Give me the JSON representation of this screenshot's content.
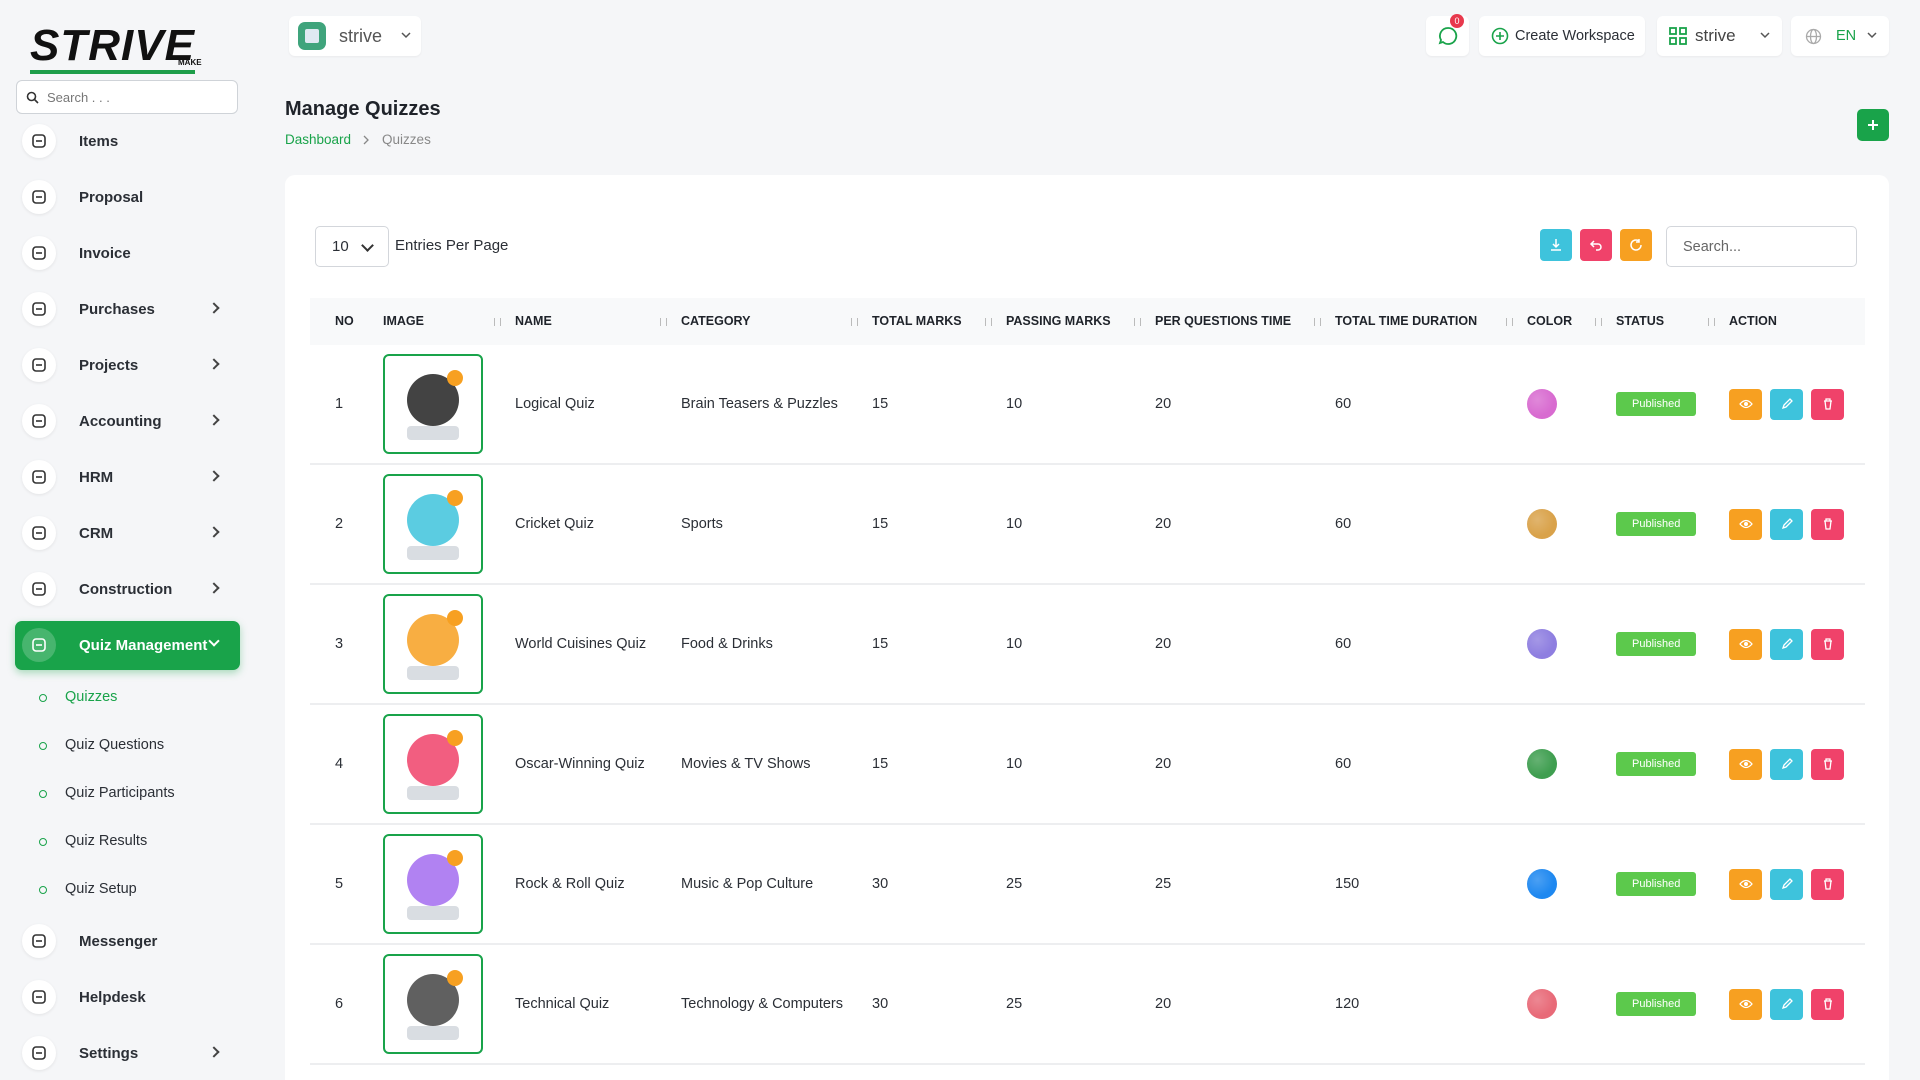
{
  "sidebar": {
    "logo": "STRIVE",
    "logo_sub": "MAKE",
    "search_placeholder": "Search . . .",
    "menu": [
      {
        "label": "Items"
      },
      {
        "label": "Proposal"
      },
      {
        "label": "Invoice"
      },
      {
        "label": "Purchases",
        "expandable": true
      },
      {
        "label": "Projects",
        "expandable": true
      },
      {
        "label": "Accounting",
        "expandable": true
      },
      {
        "label": "HRM",
        "expandable": true
      },
      {
        "label": "CRM",
        "expandable": true
      },
      {
        "label": "Construction",
        "expandable": true
      },
      {
        "label": "Quiz Management",
        "expandable": true,
        "active": true,
        "submenu": [
          "Quizzes",
          "Quiz Questions",
          "Quiz Participants",
          "Quiz Results",
          "Quiz Setup"
        ],
        "active_sub": 0
      },
      {
        "label": "Messenger"
      },
      {
        "label": "Helpdesk"
      },
      {
        "label": "Settings",
        "expandable": true
      }
    ]
  },
  "topbar": {
    "workspace": "strive",
    "notifications": 0,
    "create_workspace": "Create Workspace",
    "user_workspace": "strive",
    "language": "EN"
  },
  "page": {
    "title": "Manage Quizzes",
    "breadcrumb": [
      "Dashboard",
      "Quizzes"
    ]
  },
  "table": {
    "entries_per_page": 10,
    "entries_label": "Entries Per Page",
    "search_placeholder": "Search...",
    "headers": [
      "NO",
      "IMAGE",
      "NAME",
      "CATEGORY",
      "TOTAL MARKS",
      "PASSING MARKS",
      "PER QUESTIONS TIME",
      "TOTAL TIME DURATION",
      "COLOR",
      "STATUS",
      "ACTION"
    ],
    "rows": [
      {
        "no": 1,
        "name": "Logical Quiz",
        "category": "Brain Teasers & Puzzles",
        "total_marks": 15,
        "passing_marks": 10,
        "per_question_time": 20,
        "total_time_duration": 60,
        "color": "#d86bd0",
        "status": "Published"
      },
      {
        "no": 2,
        "name": "Cricket Quiz",
        "category": "Sports",
        "total_marks": 15,
        "passing_marks": 10,
        "per_question_time": 20,
        "total_time_duration": 60,
        "color": "#d9a24a",
        "status": "Published"
      },
      {
        "no": 3,
        "name": "World Cuisines Quiz",
        "category": "Food & Drinks",
        "total_marks": 15,
        "passing_marks": 10,
        "per_question_time": 20,
        "total_time_duration": 60,
        "color": "#8e7ee0",
        "status": "Published"
      },
      {
        "no": 4,
        "name": "Oscar-Winning Quiz",
        "category": "Movies & TV Shows",
        "total_marks": 15,
        "passing_marks": 10,
        "per_question_time": 20,
        "total_time_duration": 60,
        "color": "#3f9e50",
        "status": "Published"
      },
      {
        "no": 5,
        "name": "Rock & Roll Quiz",
        "category": "Music & Pop Culture",
        "total_marks": 30,
        "passing_marks": 25,
        "per_question_time": 25,
        "total_time_duration": 150,
        "color": "#1e88f0",
        "status": "Published"
      },
      {
        "no": 6,
        "name": "Technical Quiz",
        "category": "Technology & Computers",
        "total_marks": 30,
        "passing_marks": 25,
        "per_question_time": 20,
        "total_time_duration": 120,
        "color": "#e86a78",
        "status": "Published"
      }
    ]
  }
}
